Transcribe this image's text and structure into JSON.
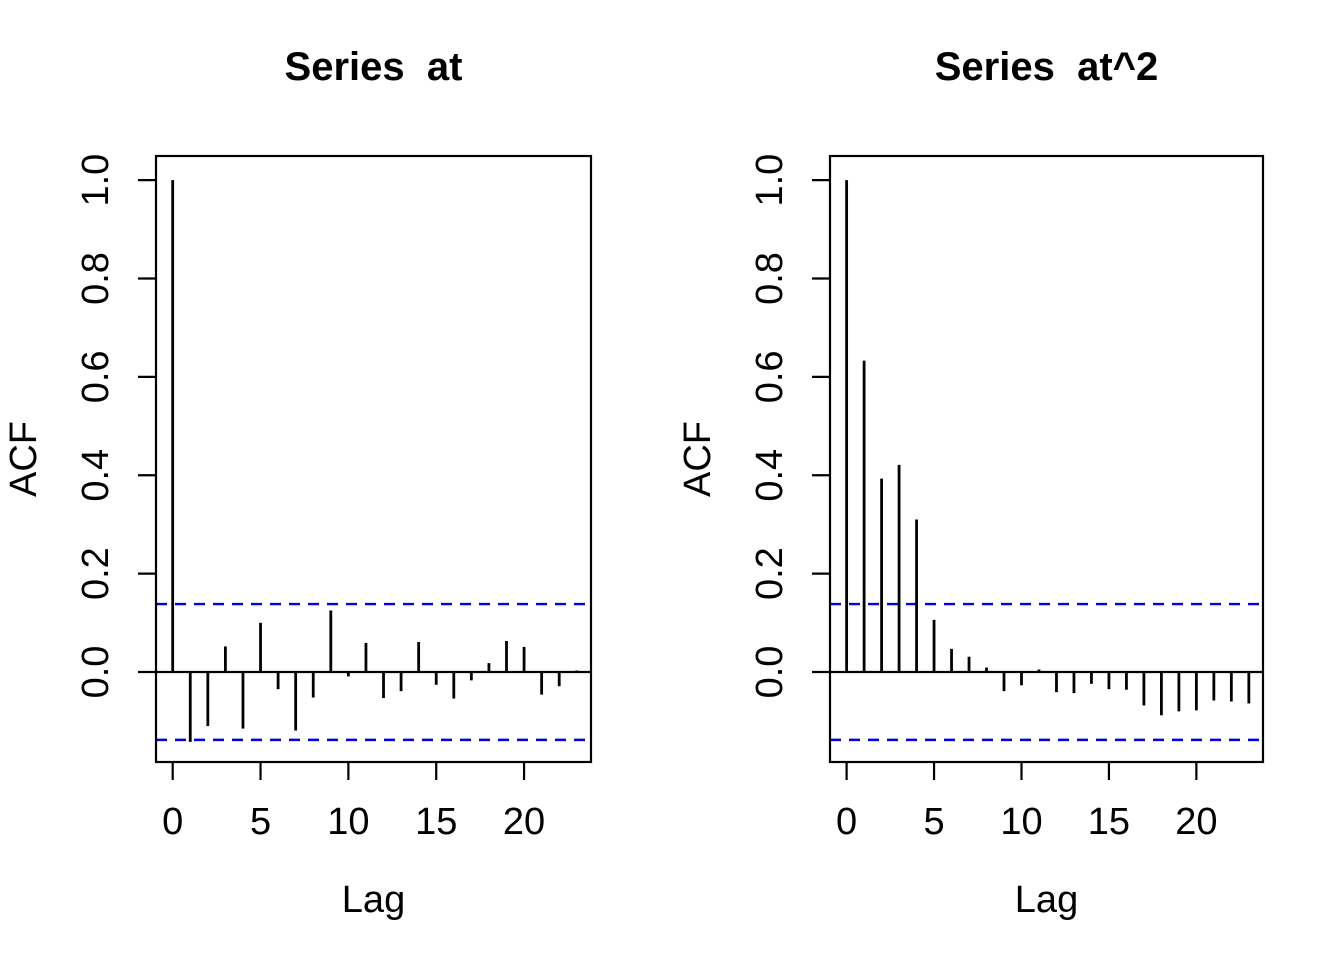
{
  "figure": {
    "background": "#ffffff"
  },
  "colors": {
    "bar": "#000000",
    "axis": "#000000",
    "text": "#000000",
    "confidence": "#0000EE"
  },
  "chart_data": [
    {
      "type": "bar",
      "subtype": "acf",
      "title": "Series  at",
      "xlabel": "Lag",
      "ylabel": "ACF",
      "lags": [
        0,
        1,
        2,
        3,
        4,
        5,
        6,
        7,
        8,
        9,
        10,
        11,
        12,
        13,
        14,
        15,
        16,
        17,
        18,
        19,
        20,
        21,
        22,
        23
      ],
      "values": [
        1.0,
        -0.142,
        -0.11,
        0.052,
        -0.115,
        0.1,
        -0.035,
        -0.119,
        -0.052,
        0.125,
        -0.009,
        0.059,
        -0.053,
        -0.039,
        0.061,
        -0.026,
        -0.054,
        -0.017,
        0.018,
        0.063,
        0.051,
        -0.046,
        -0.029,
        0.003
      ],
      "conf_lines": [
        0.138,
        -0.138
      ],
      "conf_line_style": "dashed",
      "xticks": [
        0,
        5,
        10,
        15,
        20
      ],
      "xtick_labels": [
        "0",
        "5",
        "10",
        "15",
        "20"
      ],
      "yticks": [
        0.0,
        0.2,
        0.4,
        0.6,
        0.8,
        1.0
      ],
      "ytick_labels": [
        "0.0",
        "0.2",
        "0.4",
        "0.6",
        "0.8",
        "1.0"
      ],
      "xlim": [
        -0.95,
        23.81
      ],
      "ylim": [
        -0.183,
        1.049
      ],
      "grid": false,
      "legend": null
    },
    {
      "type": "bar",
      "subtype": "acf",
      "title": "Series  at^2",
      "xlabel": "Lag",
      "ylabel": "ACF",
      "lags": [
        0,
        1,
        2,
        3,
        4,
        5,
        6,
        7,
        8,
        9,
        10,
        11,
        12,
        13,
        14,
        15,
        16,
        17,
        18,
        19,
        20,
        21,
        22,
        23
      ],
      "values": [
        1.0,
        0.633,
        0.393,
        0.421,
        0.31,
        0.106,
        0.047,
        0.031,
        0.009,
        -0.039,
        -0.027,
        0.005,
        -0.041,
        -0.043,
        -0.024,
        -0.035,
        -0.036,
        -0.068,
        -0.088,
        -0.08,
        -0.078,
        -0.058,
        -0.06,
        -0.064
      ],
      "conf_lines": [
        0.138,
        -0.138
      ],
      "conf_line_style": "dashed",
      "xticks": [
        0,
        5,
        10,
        15,
        20
      ],
      "xtick_labels": [
        "0",
        "5",
        "10",
        "15",
        "20"
      ],
      "yticks": [
        0.0,
        0.2,
        0.4,
        0.6,
        0.8,
        1.0
      ],
      "ytick_labels": [
        "0.0",
        "0.2",
        "0.4",
        "0.6",
        "0.8",
        "1.0"
      ],
      "xlim": [
        -0.95,
        23.81
      ],
      "ylim": [
        -0.183,
        1.049
      ],
      "grid": false,
      "legend": null
    }
  ]
}
